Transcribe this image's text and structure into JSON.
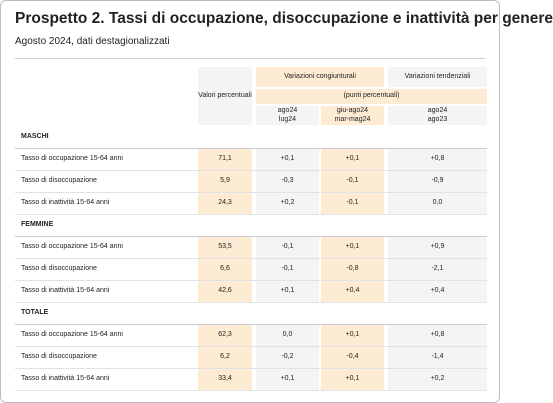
{
  "header": {
    "title": "Prospetto 2. Tassi di occupazione, disoccupazione e inattività per genere",
    "subtitle": "Agosto 2024, dati destagionalizzati"
  },
  "table": {
    "col_headers": {
      "values": "Valori percentuali",
      "cong": "Variazioni congiunturali",
      "tend": "Variazioni tendenziali",
      "units": "(punti percentuali)",
      "periods": [
        [
          "ago24",
          "lug24"
        ],
        [
          "giu-ago24",
          "mar-mag24"
        ],
        [
          "ago24",
          "ago23"
        ]
      ]
    },
    "sections": [
      {
        "name": "MASCHI",
        "rows": [
          {
            "label": "Tasso di occupazione 15-64 anni",
            "cells": [
              "71,1",
              "+0,1",
              "+0,1",
              "+0,8"
            ]
          },
          {
            "label": "Tasso di disoccupazione",
            "cells": [
              "5,9",
              "-0,3",
              "-0,1",
              "-0,9"
            ]
          },
          {
            "label": "Tasso di inattività 15-64 anni",
            "cells": [
              "24,3",
              "+0,2",
              "-0,1",
              "0,0"
            ]
          }
        ]
      },
      {
        "name": "FEMMINE",
        "rows": [
          {
            "label": "Tasso di occupazione 15-64 anni",
            "cells": [
              "53,5",
              "-0,1",
              "+0,1",
              "+0,9"
            ]
          },
          {
            "label": "Tasso di disoccupazione",
            "cells": [
              "6,6",
              "-0,1",
              "-0,8",
              "-2,1"
            ]
          },
          {
            "label": "Tasso di inattività 15-64 anni",
            "cells": [
              "42,6",
              "+0,1",
              "+0,4",
              "+0,4"
            ]
          }
        ]
      },
      {
        "name": "TOTALE",
        "rows": [
          {
            "label": "Tasso di occupazione 15-64 anni",
            "cells": [
              "62,3",
              "0,0",
              "+0,1",
              "+0,8"
            ]
          },
          {
            "label": "Tasso di disoccupazione",
            "cells": [
              "6,2",
              "-0,2",
              "-0,4",
              "-1,4"
            ]
          },
          {
            "label": "Tasso di inattività 15-64 anni",
            "cells": [
              "33,4",
              "+0,1",
              "+0,1",
              "+0,2"
            ]
          }
        ]
      }
    ]
  }
}
